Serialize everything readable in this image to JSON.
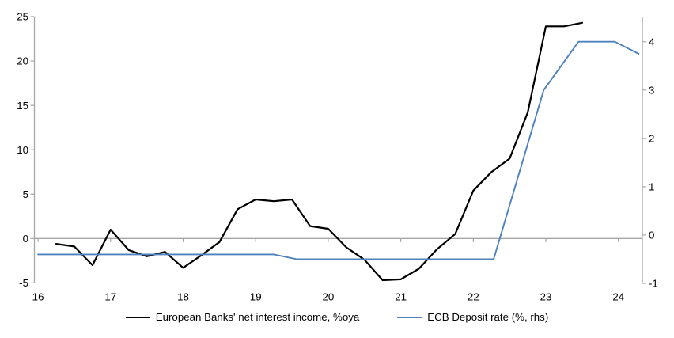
{
  "chart_data": {
    "type": "line",
    "title": "",
    "legend_position": "bottom",
    "grid": "zero-line-only",
    "axis_color": "#A6A6A6",
    "text_color": "#000000",
    "x_axis": {
      "ticks": [
        16,
        17,
        18,
        19,
        20,
        21,
        22,
        23,
        24
      ],
      "range": [
        15.95,
        24.33
      ]
    },
    "y_left": {
      "ticks": [
        25,
        20,
        15,
        10,
        5,
        0,
        -5
      ],
      "range": [
        -5,
        25
      ]
    },
    "y_right": {
      "ticks": [
        4,
        3,
        2,
        1,
        0,
        -1
      ],
      "range": [
        -0.99,
        4.52
      ]
    },
    "series": [
      {
        "name": "European Banks' net interest income, %oya",
        "axis": "left",
        "color": "#000000",
        "width": 2.2,
        "points": [
          [
            16.25,
            -0.6
          ],
          [
            16.5,
            -0.9
          ],
          [
            16.75,
            -3.0
          ],
          [
            17.0,
            1.0
          ],
          [
            17.25,
            -1.3
          ],
          [
            17.5,
            -2.0
          ],
          [
            17.75,
            -1.5
          ],
          [
            18.0,
            -3.3
          ],
          [
            18.25,
            -1.9
          ],
          [
            18.5,
            -0.4
          ],
          [
            18.75,
            3.3
          ],
          [
            19.0,
            4.4
          ],
          [
            19.25,
            4.2
          ],
          [
            19.5,
            4.4
          ],
          [
            19.75,
            1.4
          ],
          [
            20.0,
            1.1
          ],
          [
            20.25,
            -1.0
          ],
          [
            20.5,
            -2.4
          ],
          [
            20.75,
            -4.7
          ],
          [
            21.0,
            -4.6
          ],
          [
            21.25,
            -3.4
          ],
          [
            21.5,
            -1.2
          ],
          [
            21.75,
            0.5
          ],
          [
            22.0,
            5.4
          ],
          [
            22.25,
            7.5
          ],
          [
            22.5,
            9.0
          ],
          [
            22.75,
            14.2
          ],
          [
            23.0,
            23.9
          ],
          [
            23.25,
            23.9
          ],
          [
            23.5,
            24.3
          ]
        ]
      },
      {
        "name": "ECB Deposit rate (%, rhs)",
        "axis": "right",
        "color": "#4F81BD",
        "width": 1.9,
        "points": [
          [
            16.0,
            -0.4
          ],
          [
            19.25,
            -0.4
          ],
          [
            19.57,
            -0.5
          ],
          [
            22.28,
            -0.5
          ],
          [
            22.97,
            3.0
          ],
          [
            23.45,
            4.0
          ],
          [
            23.95,
            4.0
          ],
          [
            24.28,
            3.75
          ]
        ]
      }
    ]
  }
}
